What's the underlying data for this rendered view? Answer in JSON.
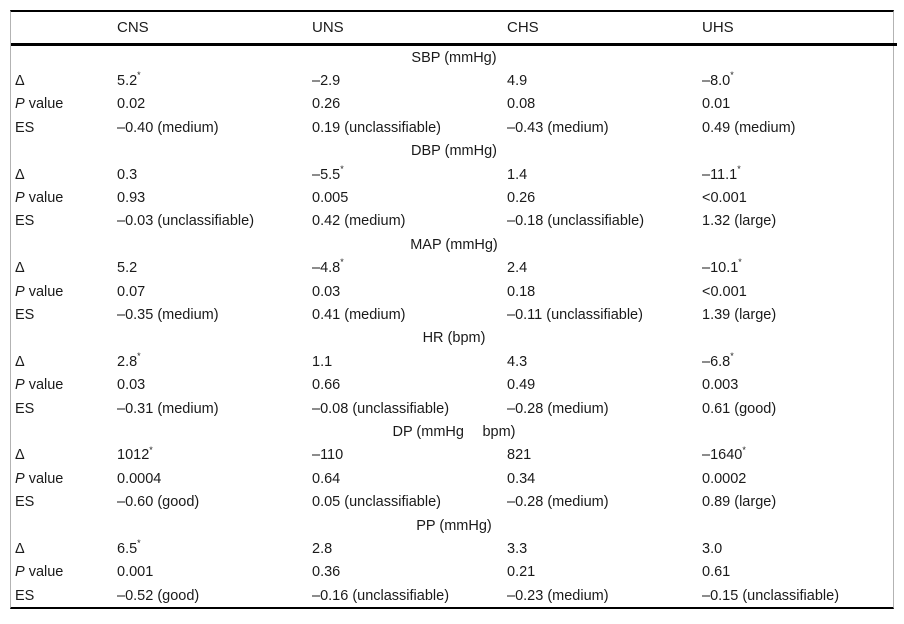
{
  "page": {
    "background": "#ffffff",
    "text_color": "#1a1a1a",
    "rule_color": "#000000",
    "side_rule_color": "#b3b3b3"
  },
  "table": {
    "columns": [
      "CNS",
      "UNS",
      "CHS",
      "UHS"
    ],
    "row_labels": {
      "delta": "Δ",
      "p": "P value",
      "es": "ES"
    },
    "sections": [
      {
        "title": "SBP (mmHg)",
        "delta": [
          "5.2*",
          "–2.9",
          "4.9",
          "–8.0*"
        ],
        "p": [
          "0.02",
          "0.26",
          "0.08",
          "0.01"
        ],
        "es": [
          "–0.40 (medium)",
          "0.19 (unclassifiable)",
          "–0.43 (medium)",
          "0.49 (medium)"
        ]
      },
      {
        "title": "DBP (mmHg)",
        "delta": [
          "0.3",
          "–5.5*",
          "1.4",
          "–11.1*"
        ],
        "p": [
          "0.93",
          "0.005",
          "0.26",
          "<0.001"
        ],
        "es": [
          "–0.03 (unclassifiable)",
          "0.42 (medium)",
          "–0.18 (unclassifiable)",
          "1.32 (large)"
        ]
      },
      {
        "title": "MAP (mmHg)",
        "delta": [
          "5.2",
          "–4.8*",
          "2.4",
          "–10.1*"
        ],
        "p": [
          "0.07",
          "0.03",
          "0.18",
          "<0.001"
        ],
        "es": [
          "–0.35 (medium)",
          "0.41 (medium)",
          "–0.11 (unclassifiable)",
          "1.39 (large)"
        ]
      },
      {
        "title": "HR (bpm)",
        "delta": [
          "2.8*",
          "1.1",
          "4.3",
          "–6.8*"
        ],
        "p": [
          "0.03",
          "0.66",
          "0.49",
          "0.003"
        ],
        "es": [
          "–0.31 (medium)",
          "–0.08 (unclassifiable)",
          "–0.28 (medium)",
          "0.61 (good)"
        ]
      },
      {
        "title": "DP (mmHg  bpm)",
        "delta": [
          "1012*",
          "–110",
          "821",
          "–1640*"
        ],
        "p": [
          "0.0004",
          "0.64",
          "0.34",
          "0.0002"
        ],
        "es": [
          "–0.60 (good)",
          "0.05 (unclassifiable)",
          "–0.28 (medium)",
          "0.89 (large)"
        ]
      },
      {
        "title": "PP (mmHg)",
        "delta": [
          "6.5*",
          "2.8",
          "3.3",
          "3.0"
        ],
        "p": [
          "0.001",
          "0.36",
          "0.21",
          "0.61"
        ],
        "es": [
          "–0.52 (good)",
          "–0.16 (unclassifiable)",
          "–0.23 (medium)",
          "–0.15 (unclassifiable)"
        ]
      }
    ]
  }
}
